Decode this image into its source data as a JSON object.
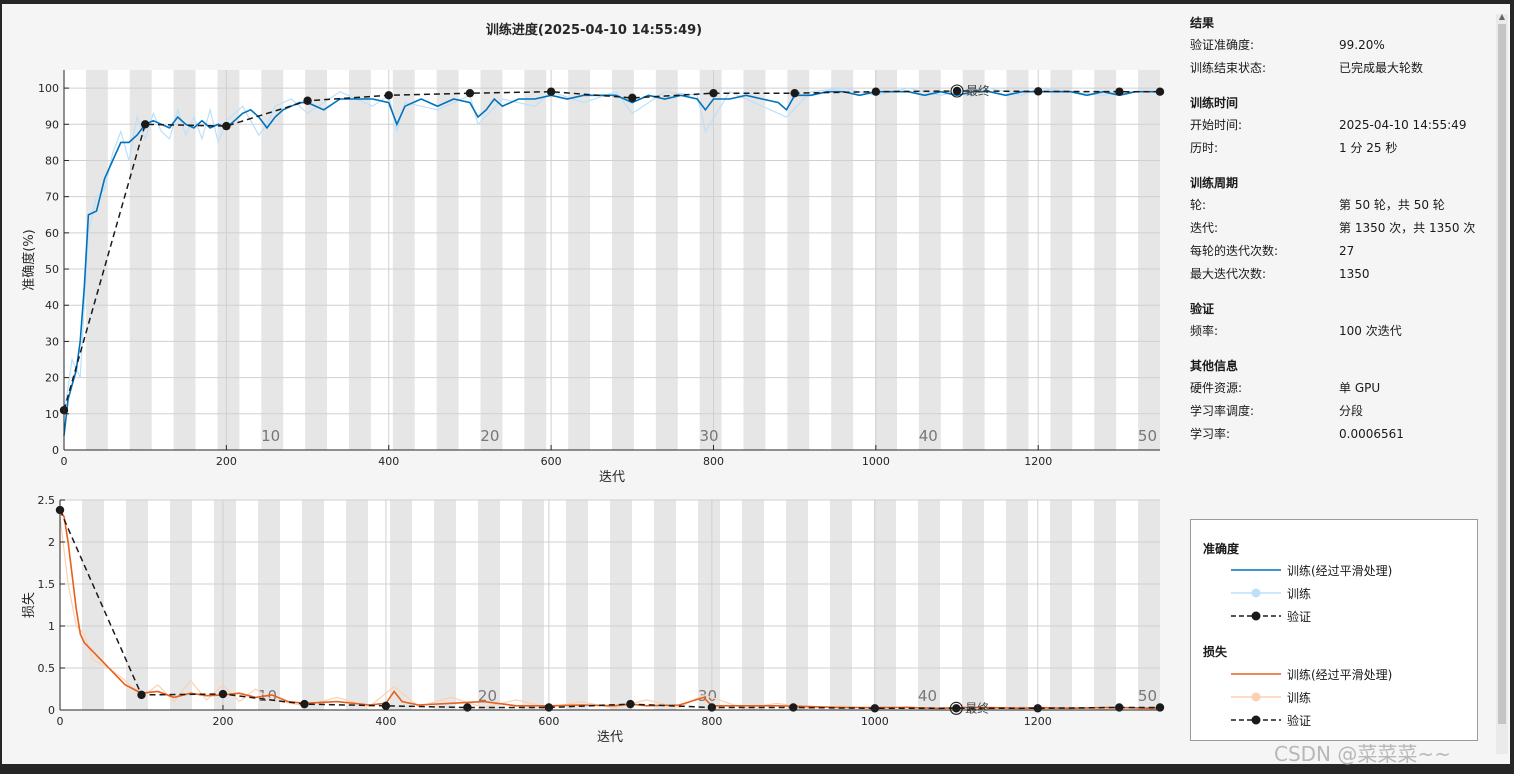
{
  "window": {
    "title": "训练进度(2025-04-10 14:55:49)"
  },
  "info_panel": {
    "sections": [
      {
        "title": "结果",
        "rows": [
          {
            "key": "验证准确度:",
            "value": "99.20%"
          },
          {
            "key": "训练结束状态:",
            "value": "已完成最大轮数"
          }
        ]
      },
      {
        "title": "训练时间",
        "rows": [
          {
            "key": "开始时间:",
            "value": "2025-04-10 14:55:49"
          },
          {
            "key": "历时:",
            "value": "1 分 25 秒"
          }
        ]
      },
      {
        "title": "训练周期",
        "rows": [
          {
            "key": "轮:",
            "value": "第 50 轮，共 50 轮"
          },
          {
            "key": "迭代:",
            "value": "第 1350 次，共 1350 次"
          },
          {
            "key": "每轮的迭代次数:",
            "value": "27"
          },
          {
            "key": "最大迭代次数:",
            "value": "1350"
          }
        ]
      },
      {
        "title": "验证",
        "rows": [
          {
            "key": "频率:",
            "value": "100 次迭代"
          }
        ]
      },
      {
        "title": "其他信息",
        "rows": [
          {
            "key": "硬件资源:",
            "value": "单 GPU"
          },
          {
            "key": "学习率调度:",
            "value": "分段"
          },
          {
            "key": "学习率:",
            "value": "0.0006561"
          }
        ]
      }
    ]
  },
  "legend": {
    "accuracy_title": "准确度",
    "loss_title": "损失",
    "items": {
      "smoothed": "训练(经过平滑处理)",
      "train": "训练",
      "validation": "验证"
    }
  },
  "colors": {
    "acc_smooth": "#0072bd",
    "acc_raw": "#bde0fa",
    "loss_smooth": "#e8601c",
    "loss_raw": "#fbd1b3",
    "validation": "#1a1a1a",
    "band": "#e6e6e6",
    "grid": "#d0d0d0"
  },
  "watermark": "CSDN @菜菜菜~~",
  "chart_data": [
    {
      "type": "line",
      "title": "训练进度(2025-04-10 14:55:49)",
      "xlabel": "迭代",
      "ylabel": "准确度(%)",
      "xlim": [
        0,
        1350
      ],
      "ylim": [
        0,
        105
      ],
      "xticks": [
        0,
        200,
        400,
        600,
        800,
        1000,
        1200
      ],
      "yticks": [
        0,
        10,
        20,
        30,
        40,
        50,
        60,
        70,
        80,
        90,
        100
      ],
      "iterations_per_epoch": 27,
      "epoch_labels": [
        10,
        20,
        30,
        40,
        50
      ],
      "final_marker_label": "最终",
      "final_marker": {
        "x": 1100,
        "y": 99.2
      },
      "validation": {
        "name": "验证",
        "x": [
          0,
          100,
          200,
          300,
          400,
          500,
          600,
          700,
          800,
          900,
          1000,
          1100,
          1200,
          1300,
          1350
        ],
        "y": [
          11,
          90,
          89.5,
          96.5,
          98,
          98.6,
          99,
          97.3,
          98.6,
          98.6,
          99,
          99.2,
          99.1,
          99,
          99
        ]
      },
      "train_smoothed": {
        "name": "训练(经过平滑处理)",
        "x": [
          0,
          5,
          10,
          15,
          20,
          25,
          30,
          40,
          50,
          60,
          70,
          80,
          90,
          100,
          110,
          120,
          130,
          140,
          150,
          160,
          170,
          180,
          190,
          200,
          210,
          220,
          230,
          240,
          250,
          260,
          270,
          280,
          290,
          300,
          320,
          340,
          360,
          380,
          400,
          410,
          420,
          440,
          460,
          480,
          500,
          510,
          520,
          530,
          540,
          560,
          580,
          600,
          620,
          640,
          660,
          680,
          700,
          720,
          740,
          760,
          780,
          790,
          800,
          820,
          840,
          860,
          880,
          890,
          900,
          920,
          940,
          960,
          980,
          1000,
          1020,
          1040,
          1060,
          1080,
          1100,
          1120,
          1140,
          1160,
          1180,
          1200,
          1220,
          1240,
          1260,
          1280,
          1300,
          1320,
          1340,
          1350
        ],
        "y": [
          4,
          14,
          18,
          22,
          30,
          45,
          65,
          66,
          75,
          80,
          85,
          85,
          87,
          90,
          91,
          90,
          89,
          92,
          90,
          89,
          91,
          89,
          90,
          89,
          91,
          93,
          94,
          92,
          89,
          92,
          94,
          95,
          96,
          96,
          94,
          97,
          97,
          97,
          96,
          90,
          95,
          97,
          95,
          97,
          96,
          92,
          94,
          97,
          95,
          97,
          97,
          98,
          97,
          98,
          98,
          98,
          96,
          98,
          97,
          98,
          97,
          94,
          97,
          97,
          98,
          97,
          96,
          94,
          98,
          98,
          99,
          99,
          98,
          99,
          99,
          99,
          98,
          99,
          98,
          99,
          99,
          98,
          99,
          99,
          99,
          99,
          98,
          99,
          98,
          99,
          99,
          99
        ]
      },
      "train": {
        "name": "训练",
        "x": [
          0,
          10,
          20,
          30,
          40,
          50,
          60,
          70,
          80,
          90,
          100,
          110,
          120,
          130,
          140,
          150,
          160,
          170,
          180,
          190,
          200,
          220,
          240,
          250,
          260,
          280,
          300,
          340,
          380,
          400,
          410,
          420,
          460,
          500,
          510,
          540,
          580,
          600,
          640,
          680,
          700,
          740,
          780,
          790,
          820,
          860,
          890,
          920,
          960,
          1000,
          1040,
          1080,
          1100,
          1140,
          1180,
          1200,
          1240,
          1280,
          1300,
          1340,
          1350
        ],
        "y": [
          10,
          25,
          20,
          60,
          70,
          72,
          82,
          88,
          80,
          92,
          86,
          93,
          88,
          86,
          94,
          87,
          92,
          86,
          94,
          85,
          91,
          95,
          87,
          90,
          95,
          97,
          93,
          99,
          95,
          98,
          88,
          96,
          94,
          98,
          90,
          97,
          95,
          99,
          96,
          99,
          93,
          99,
          98,
          88,
          99,
          95,
          92,
          99,
          100,
          98,
          100,
          98,
          99,
          100,
          98,
          100,
          99,
          98,
          99,
          99,
          99
        ]
      }
    },
    {
      "type": "line",
      "xlabel": "迭代",
      "ylabel": "损失",
      "xlim": [
        0,
        1350
      ],
      "ylim": [
        0,
        2.5
      ],
      "xticks": [
        0,
        200,
        400,
        600,
        800,
        1000,
        1200
      ],
      "yticks": [
        0,
        0.5,
        1,
        1.5,
        2,
        2.5
      ],
      "iterations_per_epoch": 27,
      "epoch_labels": [
        10,
        20,
        30,
        40,
        50
      ],
      "final_marker_label": "最终",
      "final_marker": {
        "x": 1100,
        "y": 0.02
      },
      "validation": {
        "name": "验证",
        "x": [
          0,
          100,
          200,
          300,
          400,
          500,
          600,
          700,
          800,
          900,
          1000,
          1100,
          1200,
          1300,
          1350
        ],
        "y": [
          2.38,
          0.18,
          0.19,
          0.07,
          0.05,
          0.03,
          0.03,
          0.07,
          0.03,
          0.03,
          0.02,
          0.02,
          0.02,
          0.03,
          0.03
        ]
      },
      "train_smoothed": {
        "name": "训练(经过平滑处理)",
        "x": [
          0,
          5,
          10,
          15,
          20,
          25,
          30,
          40,
          50,
          60,
          70,
          80,
          90,
          100,
          120,
          140,
          160,
          180,
          200,
          220,
          240,
          260,
          280,
          300,
          340,
          380,
          400,
          410,
          420,
          440,
          480,
          520,
          560,
          600,
          640,
          680,
          700,
          720,
          760,
          790,
          800,
          840,
          880,
          920,
          960,
          1000,
          1040,
          1080,
          1100,
          1140,
          1180,
          1200,
          1240,
          1280,
          1300,
          1340,
          1350
        ],
        "y": [
          2.38,
          2.3,
          2.0,
          1.6,
          1.2,
          0.9,
          0.8,
          0.7,
          0.6,
          0.5,
          0.4,
          0.3,
          0.25,
          0.2,
          0.22,
          0.15,
          0.2,
          0.17,
          0.18,
          0.2,
          0.15,
          0.18,
          0.1,
          0.08,
          0.1,
          0.06,
          0.08,
          0.22,
          0.1,
          0.06,
          0.08,
          0.1,
          0.05,
          0.05,
          0.06,
          0.05,
          0.07,
          0.05,
          0.06,
          0.15,
          0.05,
          0.05,
          0.05,
          0.04,
          0.03,
          0.03,
          0.03,
          0.02,
          0.03,
          0.03,
          0.02,
          0.03,
          0.02,
          0.03,
          0.03,
          0.02,
          0.03
        ]
      },
      "train": {
        "name": "训练",
        "x": [
          0,
          10,
          20,
          30,
          40,
          60,
          80,
          100,
          120,
          140,
          160,
          180,
          200,
          220,
          240,
          260,
          300,
          340,
          380,
          410,
          440,
          480,
          520,
          560,
          600,
          640,
          680,
          720,
          760,
          790,
          840,
          880,
          920,
          960,
          1000,
          1040,
          1080,
          1100,
          1140,
          1180,
          1200,
          1240,
          1280,
          1300,
          1340,
          1350
        ],
        "y": [
          2.3,
          1.5,
          1.0,
          0.9,
          0.6,
          0.5,
          0.35,
          0.15,
          0.3,
          0.1,
          0.35,
          0.12,
          0.3,
          0.1,
          0.25,
          0.12,
          0.05,
          0.15,
          0.04,
          0.28,
          0.04,
          0.15,
          0.03,
          0.12,
          0.03,
          0.1,
          0.02,
          0.12,
          0.03,
          0.18,
          0.02,
          0.08,
          0.02,
          0.05,
          0.01,
          0.04,
          0.01,
          0.03,
          0.01,
          0.04,
          0.01,
          0.03,
          0.01,
          0.03,
          0.01,
          0.02
        ]
      }
    }
  ]
}
